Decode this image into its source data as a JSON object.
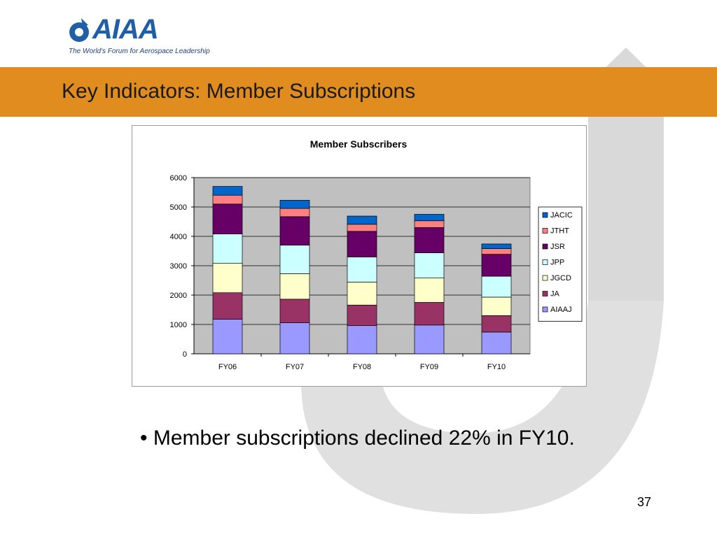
{
  "logo": {
    "wordmark": "AIAA",
    "tagline": "The World's Forum for Aerospace Leadership"
  },
  "slide": {
    "title": "Key Indicators:  Member Subscriptions",
    "bullet": "• Member subscriptions declined 22% in FY10.",
    "page_number": "37"
  },
  "colors": {
    "band": "#e08c1e",
    "arrow": "#d9d9d9"
  },
  "chart_data": {
    "type": "bar",
    "stacked": true,
    "title": "Member Subscribers",
    "xlabel": "",
    "ylabel": "",
    "ylim": [
      0,
      6000
    ],
    "yticks": [
      "0",
      "1000",
      "2000",
      "3000",
      "4000",
      "5000",
      "6000"
    ],
    "ytick_values": [
      0,
      1000,
      2000,
      3000,
      4000,
      5000,
      6000
    ],
    "grid": true,
    "legend_position": "right",
    "categories": [
      "FY06",
      "FY07",
      "FY08",
      "FY09",
      "FY10"
    ],
    "series": [
      {
        "name": "AIAAJ",
        "color": "#9999ff",
        "values": [
          1180,
          1060,
          960,
          980,
          740
        ]
      },
      {
        "name": "JA",
        "color": "#993366",
        "values": [
          900,
          800,
          700,
          770,
          560
        ]
      },
      {
        "name": "JGCD",
        "color": "#ffffcc",
        "values": [
          1000,
          870,
          780,
          830,
          630
        ]
      },
      {
        "name": "JPP",
        "color": "#ccffff",
        "values": [
          1000,
          970,
          860,
          860,
          710
        ]
      },
      {
        "name": "JSR",
        "color": "#660066",
        "values": [
          1020,
          970,
          870,
          860,
          750
        ]
      },
      {
        "name": "JTHT",
        "color": "#ff8080",
        "values": [
          300,
          280,
          240,
          230,
          190
        ]
      },
      {
        "name": "JACIC",
        "color": "#0066cc",
        "values": [
          300,
          280,
          280,
          220,
          160
        ]
      }
    ]
  }
}
